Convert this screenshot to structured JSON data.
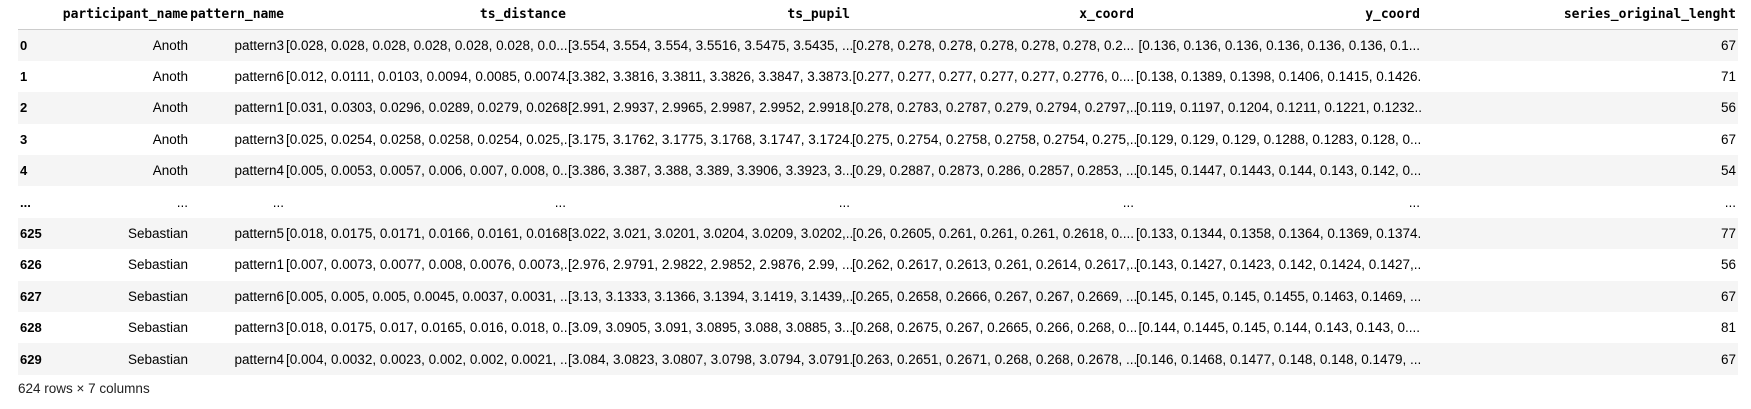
{
  "columns": [
    "",
    "participant_name",
    "pattern_name",
    "ts_distance",
    "ts_pupil",
    "x_coord",
    "y_coord",
    "series_original_lenght"
  ],
  "rows": [
    [
      "0",
      "Anoth",
      "pattern3",
      "[0.028, 0.028, 0.028, 0.028, 0.028, 0.028, 0.0...",
      "[3.554, 3.554, 3.554, 3.5516, 3.5475, 3.5435, ...",
      "[0.278, 0.278, 0.278, 0.278, 0.278, 0.278, 0.2...",
      "[0.136, 0.136, 0.136, 0.136, 0.136, 0.136, 0.1...",
      "67"
    ],
    [
      "1",
      "Anoth",
      "pattern6",
      "[0.012, 0.0111, 0.0103, 0.0094, 0.0085, 0.0074...",
      "[3.382, 3.3816, 3.3811, 3.3826, 3.3847, 3.3873...",
      "[0.277, 0.277, 0.277, 0.277, 0.277, 0.2776, 0....",
      "[0.138, 0.1389, 0.1398, 0.1406, 0.1415, 0.1426...",
      "71"
    ],
    [
      "2",
      "Anoth",
      "pattern1",
      "[0.031, 0.0303, 0.0296, 0.0289, 0.0279, 0.0268...",
      "[2.991, 2.9937, 2.9965, 2.9987, 2.9952, 2.9918...",
      "[0.278, 0.2783, 0.2787, 0.279, 0.2794, 0.2797,...",
      "[0.119, 0.1197, 0.1204, 0.1211, 0.1221, 0.1232...",
      "56"
    ],
    [
      "3",
      "Anoth",
      "pattern3",
      "[0.025, 0.0254, 0.0258, 0.0258, 0.0254, 0.025,...",
      "[3.175, 3.1762, 3.1775, 3.1768, 3.1747, 3.1724...",
      "[0.275, 0.2754, 0.2758, 0.2758, 0.2754, 0.275,...",
      "[0.129, 0.129, 0.129, 0.1288, 0.1283, 0.128, 0...",
      "67"
    ],
    [
      "4",
      "Anoth",
      "pattern4",
      "[0.005, 0.0053, 0.0057, 0.006, 0.007, 0.008, 0...",
      "[3.386, 3.387, 3.388, 3.389, 3.3906, 3.3923, 3...",
      "[0.29, 0.2887, 0.2873, 0.286, 0.2857, 0.2853, ...",
      "[0.145, 0.1447, 0.1443, 0.144, 0.143, 0.142, 0...",
      "54"
    ],
    [
      "...",
      "...",
      "...",
      "...",
      "...",
      "...",
      "...",
      "..."
    ],
    [
      "625",
      "Sebastian",
      "pattern5",
      "[0.018, 0.0175, 0.0171, 0.0166, 0.0161, 0.0168...",
      "[3.022, 3.021, 3.0201, 3.0204, 3.0209, 3.0202,...",
      "[0.26, 0.2605, 0.261, 0.261, 0.261, 0.2618, 0....",
      "[0.133, 0.1344, 0.1358, 0.1364, 0.1369, 0.1374...",
      "77"
    ],
    [
      "626",
      "Sebastian",
      "pattern1",
      "[0.007, 0.0073, 0.0077, 0.008, 0.0076, 0.0073,...",
      "[2.976, 2.9791, 2.9822, 2.9852, 2.9876, 2.99, ...",
      "[0.262, 0.2617, 0.2613, 0.261, 0.2614, 0.2617,...",
      "[0.143, 0.1427, 0.1423, 0.142, 0.1424, 0.1427,...",
      "56"
    ],
    [
      "627",
      "Sebastian",
      "pattern6",
      "[0.005, 0.005, 0.005, 0.0045, 0.0037, 0.0031, ...",
      "[3.13, 3.1333, 3.1366, 3.1394, 3.1419, 3.1439,...",
      "[0.265, 0.2658, 0.2666, 0.267, 0.267, 0.2669, ...",
      "[0.145, 0.145, 0.145, 0.1455, 0.1463, 0.1469, ...",
      "67"
    ],
    [
      "628",
      "Sebastian",
      "pattern3",
      "[0.018, 0.0175, 0.017, 0.0165, 0.016, 0.018, 0...",
      "[3.09, 3.0905, 3.091, 3.0895, 3.088, 3.0885, 3...",
      "[0.268, 0.2675, 0.267, 0.2665, 0.266, 0.268, 0...",
      "[0.144, 0.1445, 0.145, 0.144, 0.143, 0.143, 0....",
      "81"
    ],
    [
      "629",
      "Sebastian",
      "pattern4",
      "[0.004, 0.0032, 0.0023, 0.002, 0.002, 0.0021, ...",
      "[3.084, 3.0823, 3.0807, 3.0798, 3.0794, 3.0791...",
      "[0.263, 0.2651, 0.2671, 0.268, 0.268, 0.2678, ...",
      "[0.146, 0.1468, 0.1477, 0.148, 0.148, 0.1479, ...",
      "67"
    ]
  ],
  "footer": "624 rows × 7 columns"
}
